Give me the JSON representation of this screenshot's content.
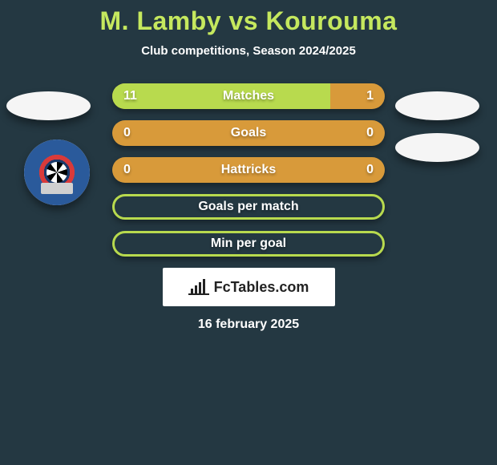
{
  "header": {
    "title": "M. Lamby vs Kourouma",
    "subtitle": "Club competitions, Season 2024/2025"
  },
  "colors": {
    "page_bg": "#243842",
    "accent_green": "#b8da4e",
    "accent_title": "#c5e85e",
    "accent_orange": "#d89a3a",
    "text": "#ffffff",
    "brand_bg": "#ffffff",
    "brand_text": "#222222"
  },
  "stats": {
    "rows": [
      {
        "label": "Matches",
        "left": "11",
        "right": "1",
        "left_pct": 80,
        "right_pct": 20,
        "empty": false
      },
      {
        "label": "Goals",
        "left": "0",
        "right": "0",
        "left_pct": 0,
        "right_pct": 100,
        "empty": false
      },
      {
        "label": "Hattricks",
        "left": "0",
        "right": "0",
        "left_pct": 0,
        "right_pct": 100,
        "empty": false
      },
      {
        "label": "Goals per match",
        "left": "",
        "right": "",
        "left_pct": 0,
        "right_pct": 0,
        "empty": true
      },
      {
        "label": "Min per goal",
        "left": "",
        "right": "",
        "left_pct": 0,
        "right_pct": 0,
        "empty": true
      }
    ]
  },
  "brand": {
    "icon": "bar-chart-icon",
    "text": "FcTables.com"
  },
  "footer": {
    "date": "16 february 2025"
  },
  "badges": {
    "left_badge": "player-left-badge",
    "right_badge_1": "player-right-badge-1",
    "right_badge_2": "player-right-badge-2",
    "club_logo": "club-logo-unterhaching"
  }
}
